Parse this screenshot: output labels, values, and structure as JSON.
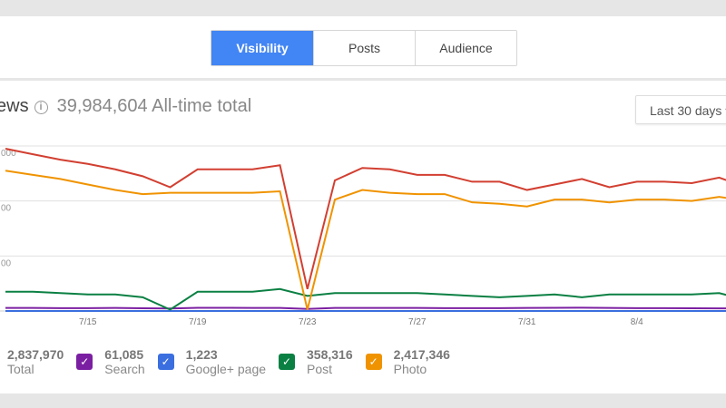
{
  "tabs": [
    {
      "label": "Visibility",
      "active": true
    },
    {
      "label": "Posts"
    },
    {
      "label": "Audience"
    }
  ],
  "header": {
    "title": "ews",
    "total": "39,984,604 All-time total",
    "info_icon": "i",
    "range": "Last 30 days"
  },
  "legend": [
    {
      "value": "2,837,970",
      "label": "Total"
    },
    {
      "value": "61,085",
      "label": "Search",
      "color": "#7b1fa2"
    },
    {
      "value": "1,223",
      "label": "Google+ page",
      "color": "#3b6fe0"
    },
    {
      "value": "358,316",
      "label": "Post",
      "color": "#0b8043"
    },
    {
      "value": "2,417,346",
      "label": "Photo",
      "color": "#f09300"
    }
  ],
  "chart_data": {
    "type": "line",
    "ytick_labels": [
      "000",
      "00",
      "00"
    ],
    "yticks": [
      120000,
      80000,
      40000
    ],
    "ylim": [
      0,
      120000
    ],
    "x": [
      "7/12",
      "7/13",
      "7/14",
      "7/15",
      "7/16",
      "7/17",
      "7/18",
      "7/19",
      "7/20",
      "7/21",
      "7/22",
      "7/23",
      "7/24",
      "7/25",
      "7/26",
      "7/27",
      "7/28",
      "7/29",
      "7/30",
      "7/31",
      "8/1",
      "8/2",
      "8/3",
      "8/4",
      "8/5",
      "8/6",
      "8/7",
      "8/8"
    ],
    "xtick_labels": [
      "7/15",
      "7/19",
      "7/23",
      "7/27",
      "7/31",
      "8/4"
    ],
    "series": [
      {
        "name": "Total",
        "color": "#d23f31",
        "values": [
          118000,
          114000,
          110000,
          107000,
          103000,
          98000,
          90000,
          103000,
          103000,
          103000,
          106000,
          16000,
          95000,
          104000,
          103000,
          99000,
          99000,
          94000,
          94000,
          88000,
          92000,
          96000,
          90000,
          94000,
          94000,
          93000,
          97000,
          90000
        ]
      },
      {
        "name": "Photo",
        "color": "#f09300",
        "values": [
          102000,
          99000,
          96000,
          92000,
          88000,
          85000,
          86000,
          86000,
          86000,
          86000,
          87000,
          1000,
          81000,
          88000,
          86000,
          85000,
          85000,
          79000,
          78000,
          76000,
          81000,
          81000,
          79000,
          81000,
          81000,
          80000,
          83000,
          80000
        ]
      },
      {
        "name": "Post",
        "color": "#0b8043",
        "values": [
          14000,
          14000,
          13000,
          12000,
          12000,
          10000,
          1000,
          14000,
          14000,
          14000,
          16000,
          11000,
          13000,
          13000,
          13000,
          13000,
          12000,
          11000,
          10000,
          11000,
          12000,
          10000,
          12000,
          12000,
          12000,
          12000,
          13000,
          8000
        ]
      },
      {
        "name": "Search",
        "color": "#7b1fa2",
        "values": [
          2200,
          2200,
          2100,
          2100,
          2200,
          2000,
          1800,
          2300,
          2300,
          2200,
          2200,
          1500,
          2200,
          2200,
          2200,
          2200,
          2100,
          2100,
          2100,
          2200,
          2300,
          2400,
          2200,
          2100,
          2100,
          2000,
          1900,
          1900
        ]
      },
      {
        "name": "Google+ page",
        "color": "#3b6fe0",
        "values": [
          40,
          40,
          40,
          40,
          40,
          40,
          40,
          40,
          40,
          40,
          40,
          40,
          40,
          40,
          40,
          40,
          40,
          40,
          40,
          40,
          40,
          40,
          40,
          40,
          40,
          40,
          40,
          40
        ]
      }
    ]
  }
}
